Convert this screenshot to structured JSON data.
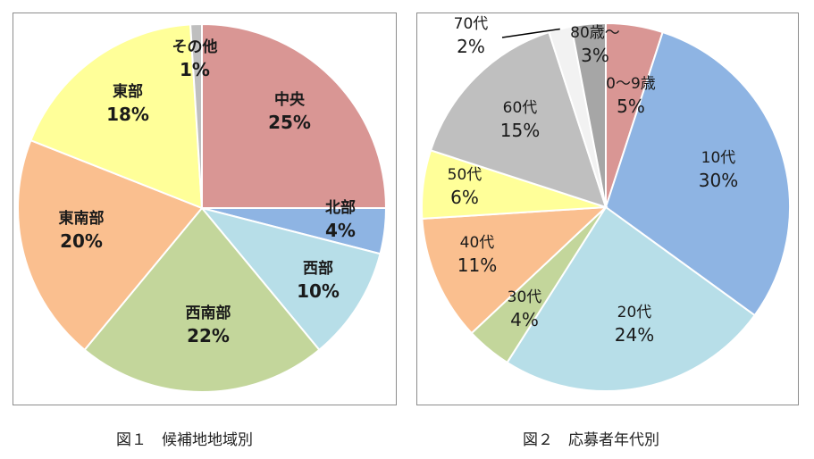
{
  "chart_data": [
    {
      "type": "pie",
      "caption": "図１　候補地地域別",
      "slices": [
        {
          "label": "中央",
          "value": 25,
          "value_label": "25%",
          "color": "#d99694"
        },
        {
          "label": "北部",
          "value": 4,
          "value_label": "4%",
          "color": "#8eb4e3"
        },
        {
          "label": "西部",
          "value": 10,
          "value_label": "10%",
          "color": "#b7dee8"
        },
        {
          "label": "西南部",
          "value": 22,
          "value_label": "22%",
          "color": "#c3d69b"
        },
        {
          "label": "東南部",
          "value": 20,
          "value_label": "20%",
          "color": "#fabf8f"
        },
        {
          "label": "東部",
          "value": 18,
          "value_label": "18%",
          "color": "#ffff99"
        },
        {
          "label": "その他",
          "value": 1,
          "value_label": "1%",
          "color": "#bfbfbf"
        }
      ]
    },
    {
      "type": "pie",
      "caption": "図２　応募者年代別",
      "slices": [
        {
          "label": "0～9歳",
          "value": 5,
          "value_label": "5%",
          "color": "#d99694"
        },
        {
          "label": "10代",
          "value": 30,
          "value_label": "30%",
          "color": "#8eb4e3"
        },
        {
          "label": "20代",
          "value": 24,
          "value_label": "24%",
          "color": "#b7dee8"
        },
        {
          "label": "30代",
          "value": 4,
          "value_label": "4%",
          "color": "#c3d69b"
        },
        {
          "label": "40代",
          "value": 11,
          "value_label": "11%",
          "color": "#fabf8f"
        },
        {
          "label": "50代",
          "value": 6,
          "value_label": "6%",
          "color": "#ffff99"
        },
        {
          "label": "60代",
          "value": 15,
          "value_label": "15%",
          "color": "#bfbfbf"
        },
        {
          "label": "70代",
          "value": 2,
          "value_label": "2%",
          "color": "#f2f2f2"
        },
        {
          "label": "80歳～",
          "value": 3,
          "value_label": "3%",
          "color": "#a6a6a6"
        }
      ]
    }
  ]
}
